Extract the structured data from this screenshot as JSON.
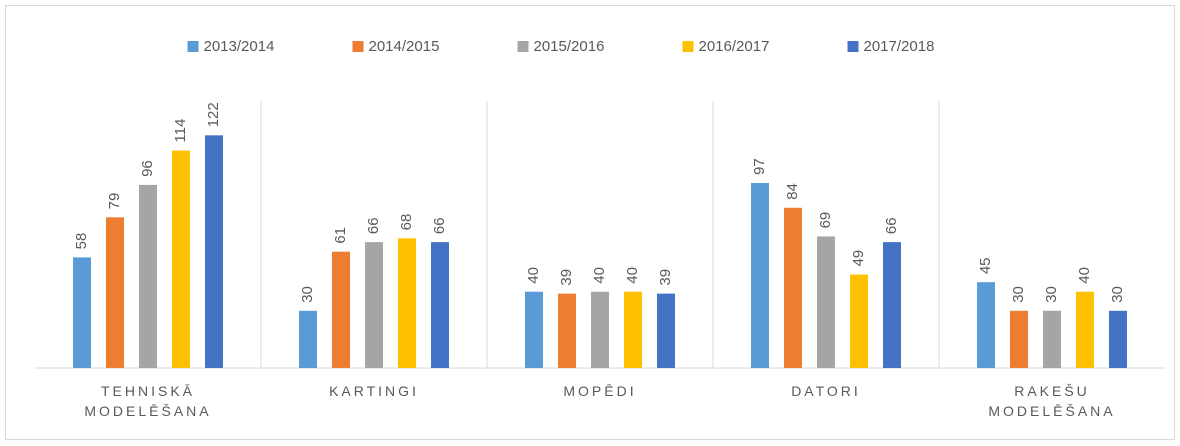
{
  "chart_data": {
    "type": "bar",
    "categories": [
      "TEHNISKĀ MODELĒŠANA",
      "KARTINGI",
      "MOPĒDI",
      "DATORI",
      "RAKEŠU MODELĒŠANA"
    ],
    "series": [
      {
        "name": "2013/2014",
        "color": "#5b9bd5",
        "values": [
          58,
          30,
          40,
          97,
          45
        ]
      },
      {
        "name": "2014/2015",
        "color": "#ed7d31",
        "values": [
          79,
          61,
          39,
          84,
          30
        ]
      },
      {
        "name": "2015/2016",
        "color": "#a5a5a5",
        "values": [
          96,
          66,
          40,
          69,
          30
        ]
      },
      {
        "name": "2016/2017",
        "color": "#ffc000",
        "values": [
          114,
          68,
          40,
          49,
          40
        ]
      },
      {
        "name": "2017/2018",
        "color": "#4472c4",
        "values": [
          122,
          66,
          39,
          66,
          30
        ]
      }
    ],
    "ylim": [
      0,
      140
    ],
    "legend": "top"
  }
}
